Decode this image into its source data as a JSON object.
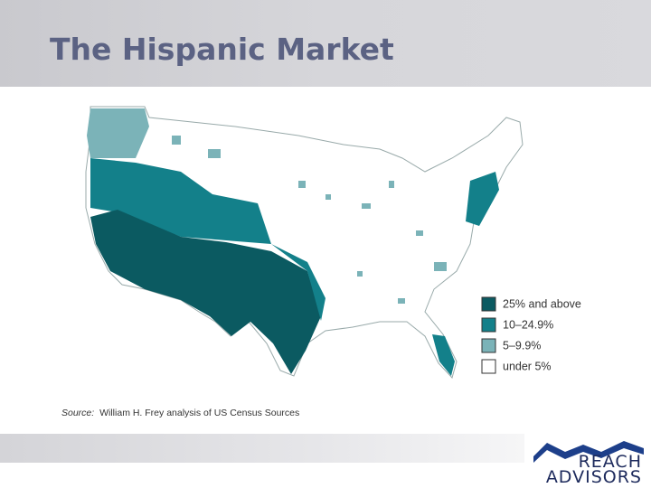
{
  "header": {
    "title": "The Hispanic Market"
  },
  "legend": [
    {
      "label": "25% and above",
      "color": "#0b5a61"
    },
    {
      "label": "10–24.9%",
      "color": "#13808a"
    },
    {
      "label": "5–9.9%",
      "color": "#7bb3b8"
    },
    {
      "label": "under 5%",
      "color": "#ffffff"
    }
  ],
  "source": {
    "prefix": "Source:",
    "text": "William H. Frey analysis of US Census Sources"
  },
  "logo": {
    "line1": "REACH",
    "line2": "ADVISORS"
  }
}
